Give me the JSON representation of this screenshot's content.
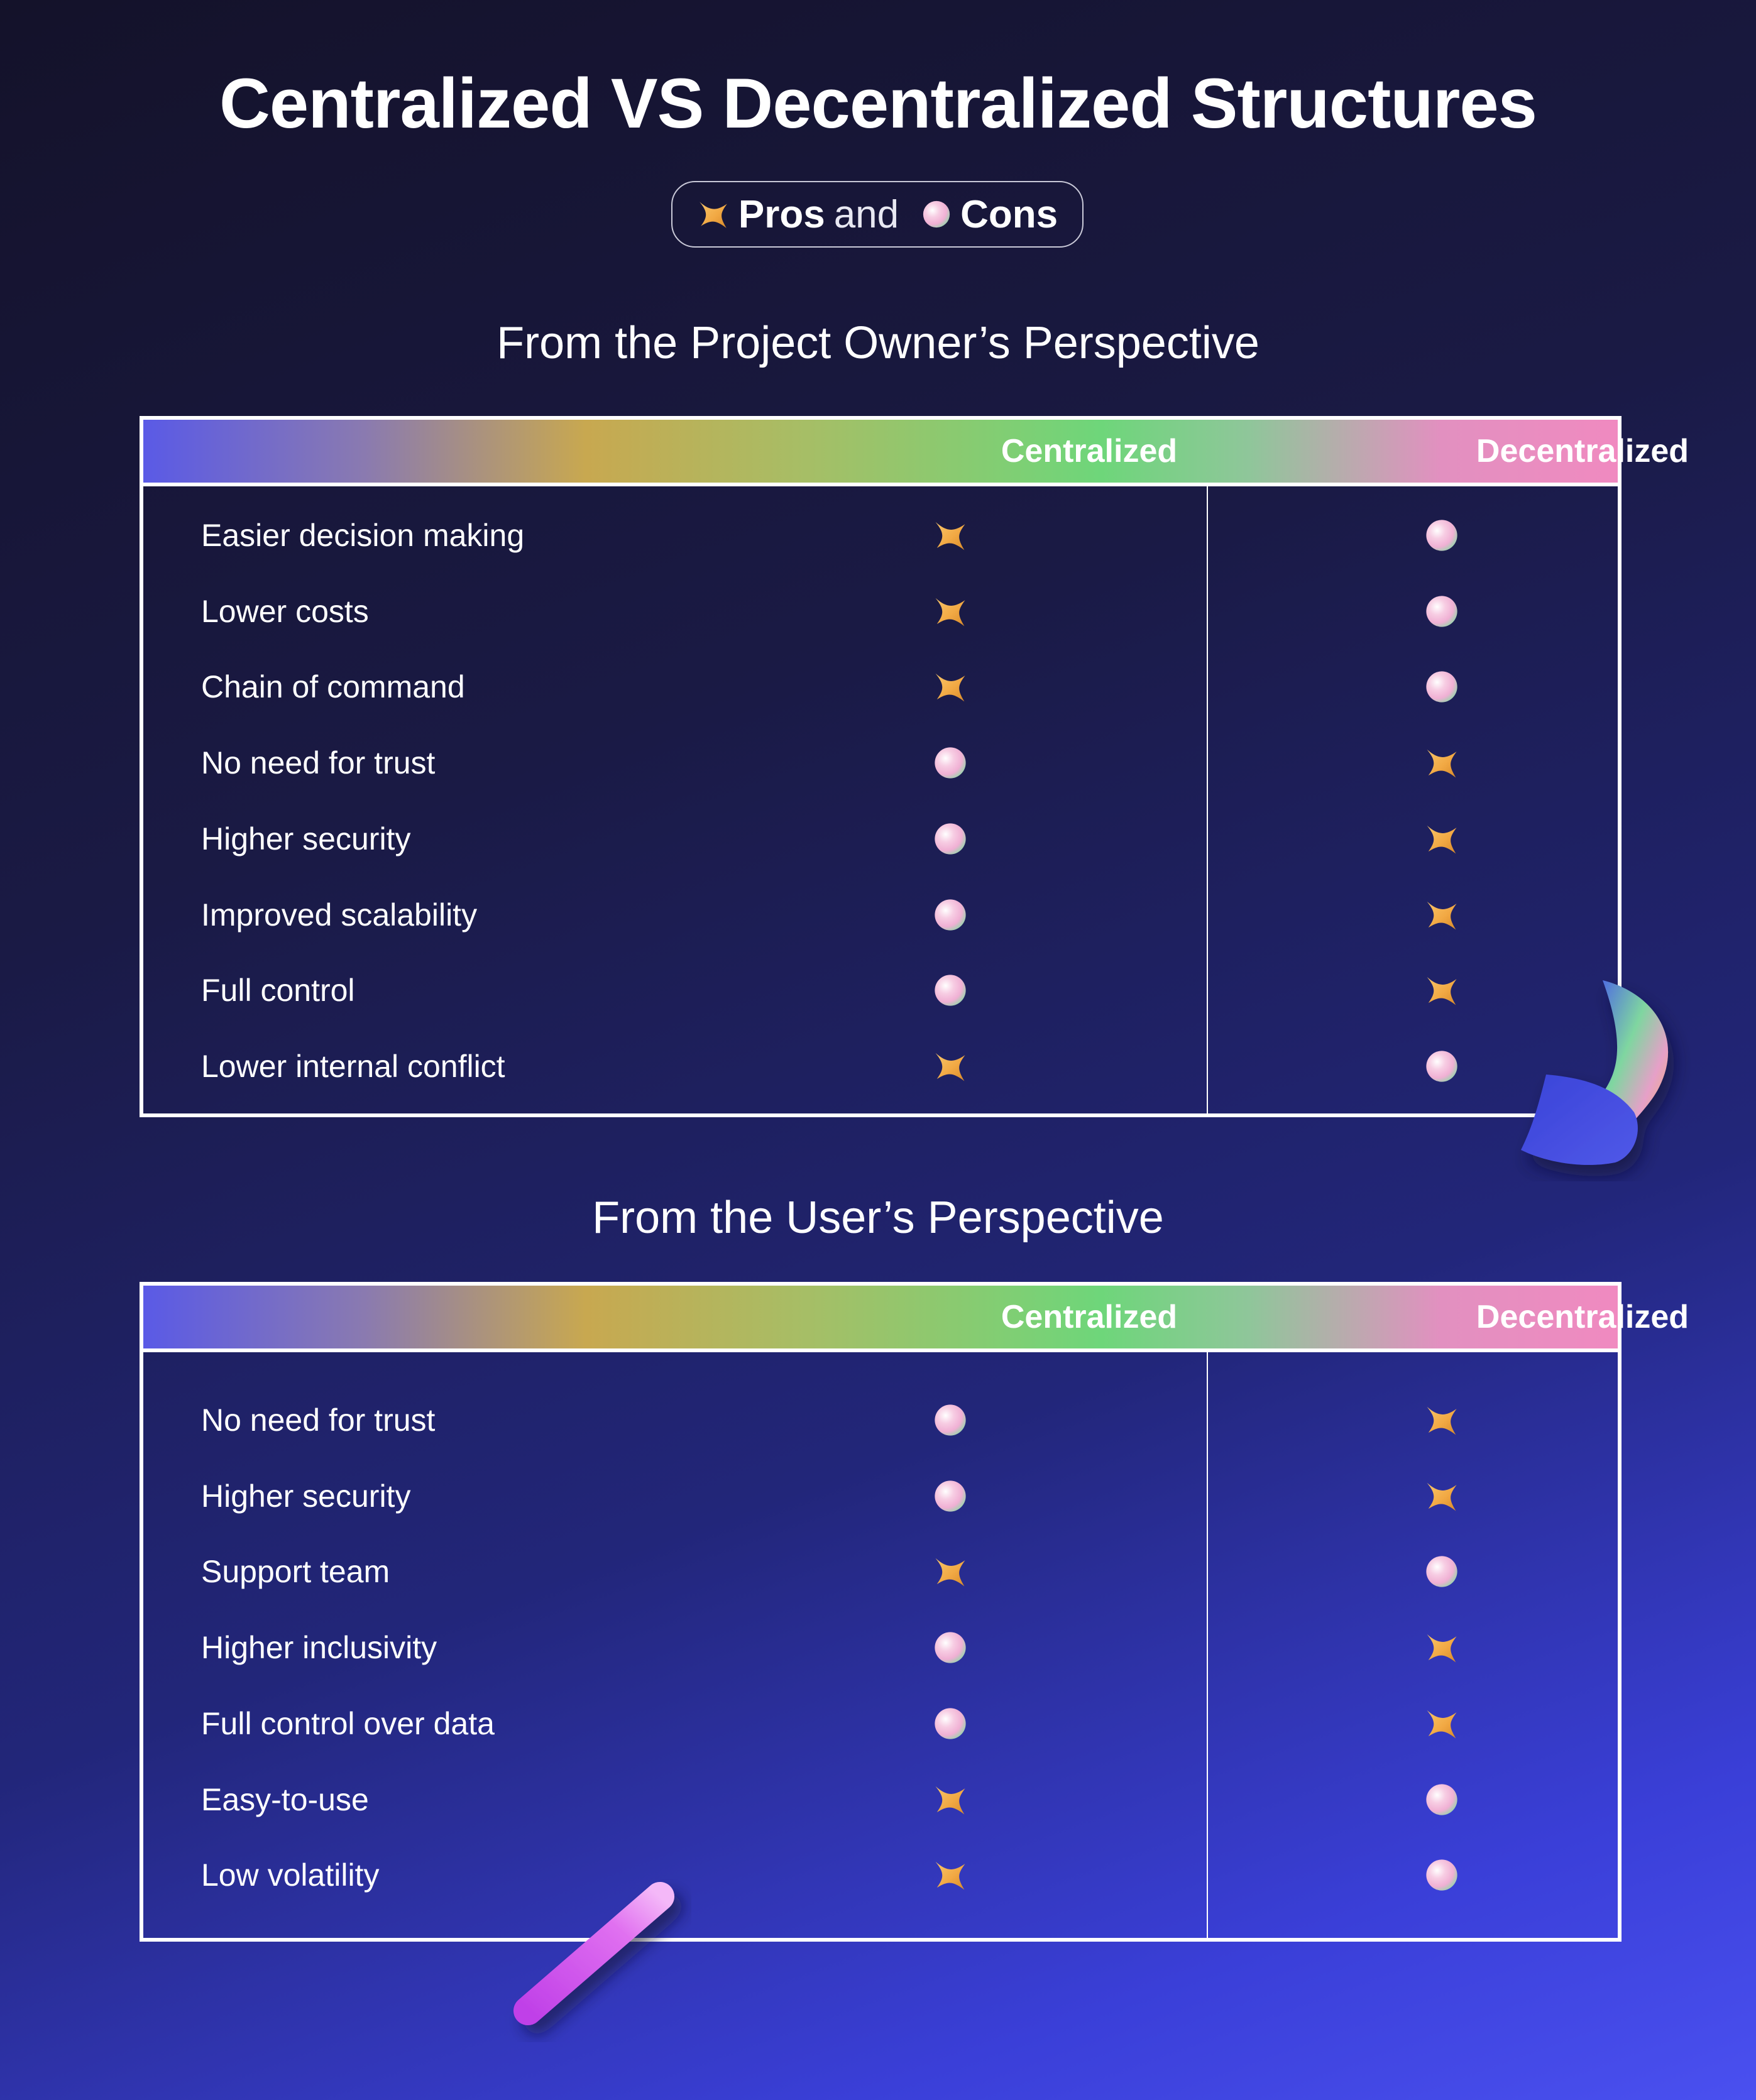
{
  "title": "Centralized VS Decentralized Structures",
  "legend": {
    "pro_icon": "sparkle-star-icon",
    "pros_label": "Pros",
    "and_label": "and",
    "con_icon": "pastel-orb-icon",
    "cons_label": "Cons"
  },
  "colors": {
    "background_top": "#14122a",
    "background_bottom": "#4a50f0",
    "pro_star": "#f2a944",
    "con_orb_pink": "#f3b8d8",
    "con_orb_green": "#7fd6a0"
  },
  "owner_section": {
    "title": "From the Project Owner’s Perspective",
    "col_centralized": "Centralized",
    "col_decentralized": "Decentralized",
    "rows": [
      {
        "label": "Easier decision making",
        "centralized": "pro",
        "decentralized": "con"
      },
      {
        "label": "Lower costs",
        "centralized": "pro",
        "decentralized": "con"
      },
      {
        "label": "Chain of command",
        "centralized": "pro",
        "decentralized": "con"
      },
      {
        "label": "No need for trust",
        "centralized": "con",
        "decentralized": "pro"
      },
      {
        "label": "Higher security",
        "centralized": "con",
        "decentralized": "pro"
      },
      {
        "label": "Improved scalability",
        "centralized": "con",
        "decentralized": "pro"
      },
      {
        "label": "Full control",
        "centralized": "con",
        "decentralized": "pro"
      },
      {
        "label": "Lower internal conflict",
        "centralized": "pro",
        "decentralized": "con"
      }
    ]
  },
  "user_section": {
    "title": "From the User’s Perspective",
    "col_centralized": "Centralized",
    "col_decentralized": "Decentralized",
    "rows": [
      {
        "label": "No need for trust",
        "centralized": "con",
        "decentralized": "pro"
      },
      {
        "label": "Higher security",
        "centralized": "con",
        "decentralized": "pro"
      },
      {
        "label": "Support team",
        "centralized": "pro",
        "decentralized": "con"
      },
      {
        "label": "Higher inclusivity",
        "centralized": "con",
        "decentralized": "pro"
      },
      {
        "label": "Full control over data",
        "centralized": "con",
        "decentralized": "pro"
      },
      {
        "label": "Easy-to-use",
        "centralized": "pro",
        "decentralized": "con"
      },
      {
        "label": "Low volatility",
        "centralized": "pro",
        "decentralized": "con"
      }
    ]
  }
}
